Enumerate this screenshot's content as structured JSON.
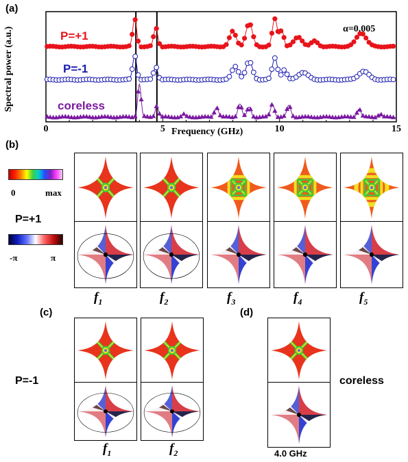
{
  "panel_a": {
    "label": "(a)",
    "alpha_label": "α=0.005",
    "chart_data": {
      "type": "scatter",
      "xlabel": "Frequency (GHz)",
      "ylabel": "Spectral power (a.u.)",
      "xlim": [
        0,
        15
      ],
      "xticks": [
        "0",
        "5",
        "10",
        "15"
      ],
      "vlines": [
        3.85,
        4.75
      ],
      "series": [
        {
          "name": "P=+1",
          "color": "#e8141b",
          "marker": "filled-circle",
          "offset": 0.68,
          "amp": 0.25,
          "peaks": [
            [
              3.8,
              1.0,
              0.12
            ],
            [
              4.7,
              0.7,
              0.12
            ],
            [
              8.0,
              0.55,
              0.2
            ],
            [
              8.7,
              0.85,
              0.2
            ],
            [
              9.8,
              1.0,
              0.15
            ],
            [
              10.1,
              0.6,
              0.12
            ],
            [
              10.8,
              0.35,
              0.25
            ],
            [
              13.5,
              0.5,
              0.3
            ],
            [
              11.5,
              0.2,
              0.2
            ]
          ]
        },
        {
          "name": "P=-1",
          "color": "#1a1ab0",
          "marker": "open-circle",
          "offset": 0.38,
          "amp": 0.22,
          "peaks": [
            [
              3.8,
              1.0,
              0.12
            ],
            [
              4.7,
              0.55,
              0.12
            ],
            [
              8.1,
              0.55,
              0.2
            ],
            [
              8.7,
              0.75,
              0.2
            ],
            [
              9.8,
              0.9,
              0.15
            ],
            [
              10.2,
              0.4,
              0.15
            ],
            [
              11.0,
              0.3,
              0.3
            ],
            [
              13.6,
              0.35,
              0.3
            ]
          ]
        },
        {
          "name": "coreless",
          "color": "#7a1aa0",
          "marker": "filled-triangle",
          "offset": 0.04,
          "amp": 0.3,
          "peaks": [
            [
              4.0,
              1.0,
              0.1
            ],
            [
              4.75,
              0.35,
              0.1
            ],
            [
              7.3,
              0.3,
              0.12
            ],
            [
              8.3,
              0.4,
              0.12
            ],
            [
              8.7,
              0.3,
              0.12
            ],
            [
              9.7,
              0.4,
              0.12
            ],
            [
              10.4,
              0.35,
              0.12
            ],
            [
              13.4,
              0.25,
              0.12
            ],
            [
              14.3,
              0.1,
              0.1
            ],
            [
              5.9,
              0.08,
              0.1
            ]
          ]
        }
      ]
    }
  },
  "panel_b": {
    "label": "(b)",
    "amp_scale": {
      "min": "0",
      "max": "max"
    },
    "polarity": "P=+1",
    "phase_scale": {
      "min": "-π",
      "max": "π"
    },
    "freqs": [
      "f",
      "f",
      "f",
      "f",
      "f"
    ],
    "freq_subs": [
      "1",
      "2",
      "3",
      "4",
      "5"
    ]
  },
  "panel_c": {
    "label": "(c)",
    "polarity": "P=-1",
    "freqs": [
      "f",
      "f"
    ],
    "freq_subs": [
      "1",
      "2"
    ]
  },
  "panel_d": {
    "label": "(d)",
    "side_label": "coreless",
    "caption": "4.0 GHz"
  },
  "colors": {
    "amp_bg": "#e8341c",
    "amp_green": "#3ecb3a",
    "phase_red": "#d11f2a",
    "phase_blue": "#1f2fcf"
  }
}
